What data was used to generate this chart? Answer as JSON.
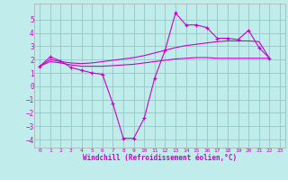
{
  "xlabel": "Windchill (Refroidissement éolien,°C)",
  "bg_color": "#c0ecec",
  "line_color": "#cc00cc",
  "grid_color": "#99cccc",
  "xlim": [
    -0.5,
    23.5
  ],
  "ylim": [
    -4.6,
    6.2
  ],
  "xticks": [
    0,
    1,
    2,
    3,
    4,
    5,
    6,
    7,
    8,
    9,
    10,
    11,
    12,
    13,
    14,
    15,
    16,
    17,
    18,
    19,
    20,
    21,
    22,
    23
  ],
  "yticks": [
    -4,
    -3,
    -2,
    -1,
    0,
    1,
    2,
    3,
    4,
    5
  ],
  "main_x": [
    0,
    1,
    2,
    3,
    4,
    5,
    6,
    7,
    8,
    9,
    10,
    11,
    12,
    13,
    14,
    15,
    16,
    17,
    18,
    19,
    20,
    21,
    22
  ],
  "main_y": [
    1.5,
    2.2,
    1.9,
    1.4,
    1.2,
    1.0,
    0.9,
    -1.3,
    -3.9,
    -3.9,
    -2.4,
    0.6,
    2.7,
    5.5,
    4.6,
    4.6,
    4.4,
    3.6,
    3.6,
    3.5,
    4.2,
    2.9,
    2.1
  ],
  "smooth1_x": [
    0,
    1,
    2,
    3,
    4,
    5,
    6,
    7,
    8,
    9,
    10,
    11,
    12,
    13,
    14,
    15,
    16,
    17,
    18,
    19,
    20,
    21,
    22
  ],
  "smooth1_y": [
    1.5,
    2.0,
    1.85,
    1.75,
    1.7,
    1.75,
    1.85,
    1.95,
    2.05,
    2.15,
    2.3,
    2.5,
    2.7,
    2.9,
    3.05,
    3.15,
    3.25,
    3.35,
    3.4,
    3.4,
    3.4,
    3.35,
    2.1
  ],
  "smooth2_x": [
    0,
    1,
    2,
    3,
    4,
    5,
    6,
    7,
    8,
    9,
    10,
    11,
    12,
    13,
    14,
    15,
    16,
    17,
    18,
    19,
    20,
    21,
    22
  ],
  "smooth2_y": [
    1.5,
    1.85,
    1.75,
    1.6,
    1.5,
    1.5,
    1.5,
    1.55,
    1.6,
    1.65,
    1.75,
    1.85,
    1.95,
    2.05,
    2.1,
    2.15,
    2.15,
    2.1,
    2.1,
    2.1,
    2.1,
    2.1,
    2.1
  ]
}
